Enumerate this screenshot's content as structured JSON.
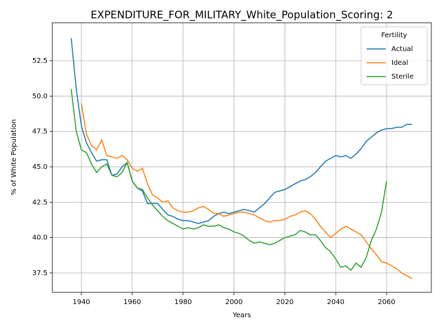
{
  "chart_data": {
    "type": "line",
    "title": "EXPENDITURE_FOR_MILITARY_White_Population_Scoring: 2",
    "x_label": "Years",
    "y_label": "% of White Population",
    "legend_title": "Fertility",
    "legend_position": "upper right",
    "grid": true,
    "xlim": [
      1928.6,
      2077.6
    ],
    "ylim": [
      36.13,
      55.18
    ],
    "xticks": [
      1940,
      1960,
      1980,
      2000,
      2020,
      2040,
      2060
    ],
    "yticks": [
      37.5,
      {
        "value": 40,
        "label": "40.0"
      },
      42.5,
      {
        "value": 45,
        "label": "45.0"
      },
      47.5,
      {
        "value": 50,
        "label": "50.0"
      },
      52.5
    ],
    "x": [
      1936,
      1938,
      1940,
      1942,
      1944,
      1946,
      1948,
      1950,
      1952,
      1954,
      1956,
      1958,
      1960,
      1962,
      1964,
      1966,
      1968,
      1970,
      1972,
      1974,
      1976,
      1978,
      1980,
      1982,
      1984,
      1986,
      1988,
      1990,
      1992,
      1994,
      1996,
      1998,
      2000,
      2002,
      2004,
      2006,
      2008,
      2010,
      2012,
      2014,
      2016,
      2018,
      2020,
      2022,
      2024,
      2026,
      2028,
      2030,
      2032,
      2034,
      2036,
      2038,
      2040,
      2042,
      2044,
      2046,
      2048,
      2050,
      2052,
      2054,
      2056,
      2058,
      2060,
      2062,
      2064,
      2066,
      2068,
      2070
    ],
    "series": [
      {
        "name": "Actual",
        "color": "#1f77b4",
        "values": [
          54.1,
          50.5,
          47.9,
          46.7,
          46.0,
          45.4,
          45.5,
          45.5,
          44.4,
          44.5,
          45.0,
          45.3,
          44.0,
          43.5,
          43.3,
          42.4,
          42.4,
          42.4,
          42.0,
          41.6,
          41.5,
          41.3,
          41.2,
          41.2,
          41.1,
          41.0,
          41.1,
          41.2,
          41.5,
          41.7,
          41.8,
          41.7,
          41.8,
          41.9,
          42.0,
          41.9,
          41.8,
          42.1,
          42.4,
          42.8,
          43.2,
          43.3,
          43.4,
          43.6,
          43.8,
          44.0,
          44.1,
          44.3,
          44.6,
          45.0,
          45.4,
          45.6,
          45.8,
          45.7,
          45.8,
          45.6,
          45.9,
          46.3,
          46.8,
          47.1,
          47.4,
          47.6,
          47.7,
          47.7,
          47.8,
          47.8,
          48.0,
          48.0
        ]
      },
      {
        "name": "Ideal",
        "color": "#ff7f0e",
        "values": [
          null,
          null,
          49.5,
          47.3,
          46.5,
          46.2,
          46.9,
          45.8,
          45.7,
          45.6,
          45.8,
          45.5,
          44.9,
          44.7,
          44.9,
          43.8,
          43.0,
          42.8,
          42.5,
          42.6,
          42.1,
          41.9,
          41.8,
          41.8,
          41.9,
          42.1,
          42.2,
          42.0,
          41.7,
          41.7,
          41.5,
          41.6,
          41.7,
          41.8,
          41.8,
          41.7,
          41.6,
          41.4,
          41.2,
          41.1,
          41.2,
          41.2,
          41.3,
          41.5,
          41.6,
          41.8,
          41.9,
          41.7,
          41.3,
          40.8,
          40.4,
          40.0,
          40.3,
          40.6,
          40.8,
          40.6,
          40.4,
          40.2,
          39.7,
          39.2,
          38.8,
          38.3,
          38.2,
          38.0,
          37.8,
          37.5,
          37.3,
          37.1
        ]
      },
      {
        "name": "Sterile",
        "color": "#2ca02c",
        "values": [
          50.5,
          47.5,
          46.2,
          46.0,
          45.2,
          44.6,
          45.0,
          45.2,
          44.4,
          44.3,
          44.6,
          45.3,
          44.0,
          43.5,
          43.4,
          42.8,
          42.3,
          41.9,
          41.5,
          41.2,
          41.0,
          40.8,
          40.6,
          40.7,
          40.6,
          40.7,
          40.9,
          40.8,
          40.8,
          40.9,
          40.7,
          40.6,
          40.4,
          40.3,
          40.1,
          39.8,
          39.6,
          39.7,
          39.6,
          39.5,
          39.6,
          39.8,
          40.0,
          40.1,
          40.2,
          40.5,
          40.4,
          40.2,
          40.2,
          39.8,
          39.3,
          39.0,
          38.5,
          37.9,
          38.0,
          37.7,
          38.2,
          37.9,
          38.6,
          39.8,
          40.6,
          41.8,
          44.0,
          null,
          null,
          null,
          null,
          null
        ]
      }
    ]
  }
}
